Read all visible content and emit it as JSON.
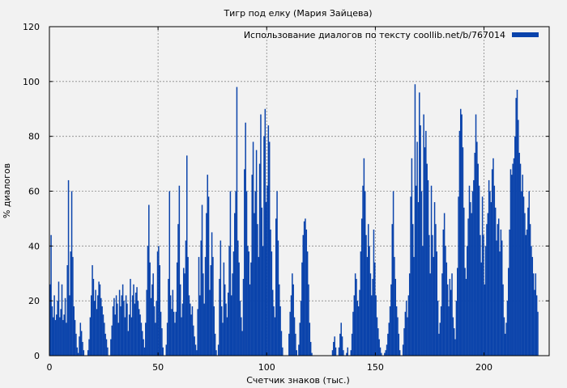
{
  "chart_data": {
    "type": "bar",
    "title": "Тигр под елку (Мария Зайцева)",
    "xlabel": "Счетчик знаков (тыс.)",
    "ylabel": "% диалогов",
    "xlim": [
      0,
      230
    ],
    "ylim": [
      0,
      120
    ],
    "xticks": [
      0,
      50,
      100,
      150,
      200
    ],
    "yticks": [
      0,
      20,
      40,
      60,
      80,
      100,
      120
    ],
    "grid": true,
    "legend_position": "top-right",
    "series": [
      {
        "name": "Использование диалогов по тексту coollib.net/b/767014",
        "color": "#0a43ab",
        "x_step": 0.5,
        "values": [
          26,
          44,
          18,
          14,
          22,
          13,
          15,
          20,
          27,
          14,
          17,
          26,
          13,
          15,
          21,
          12,
          33,
          64,
          22,
          38,
          60,
          36,
          18,
          13,
          8,
          3,
          1,
          7,
          12,
          9,
          5,
          2,
          0,
          0,
          0,
          2,
          6,
          14,
          22,
          33,
          28,
          20,
          24,
          17,
          22,
          27,
          26,
          21,
          18,
          15,
          12,
          8,
          6,
          3,
          0,
          0,
          6,
          11,
          18,
          21,
          15,
          22,
          19,
          12,
          24,
          18,
          22,
          26,
          20,
          14,
          22,
          19,
          9,
          15,
          28,
          14,
          22,
          26,
          19,
          23,
          25,
          20,
          17,
          15,
          12,
          9,
          6,
          3,
          12,
          24,
          40,
          55,
          34,
          21,
          26,
          30,
          18,
          12,
          20,
          38,
          40,
          33,
          16,
          10,
          3,
          0,
          0,
          4,
          12,
          28,
          60,
          22,
          17,
          24,
          16,
          12,
          16,
          34,
          48,
          62,
          26,
          14,
          19,
          32,
          30,
          42,
          73,
          36,
          22,
          19,
          15,
          18,
          11,
          7,
          4,
          2,
          17,
          36,
          22,
          42,
          55,
          30,
          19,
          36,
          52,
          66,
          58,
          24,
          33,
          45,
          36,
          18,
          8,
          2,
          0,
          4,
          28,
          42,
          18,
          12,
          34,
          26,
          19,
          14,
          23,
          40,
          60,
          22,
          30,
          38,
          52,
          60,
          98,
          42,
          34,
          20,
          14,
          9,
          28,
          68,
          85,
          60,
          40,
          38,
          26,
          34,
          66,
          78,
          52,
          60,
          75,
          48,
          36,
          70,
          88,
          54,
          40,
          80,
          90,
          56,
          62,
          84,
          78,
          46,
          38,
          24,
          18,
          14,
          50,
          60,
          42,
          26,
          18,
          9,
          3,
          0,
          0,
          0,
          0,
          0,
          8,
          16,
          22,
          30,
          26,
          14,
          8,
          2,
          0,
          4,
          12,
          20,
          34,
          44,
          49,
          50,
          46,
          38,
          26,
          12,
          5,
          1,
          0,
          0,
          0,
          0,
          0,
          0,
          0,
          0,
          0,
          0,
          0,
          0,
          0,
          0,
          0,
          0,
          0,
          0,
          2,
          5,
          7,
          3,
          0,
          0,
          3,
          8,
          12,
          7,
          2,
          0,
          0,
          1,
          3,
          0,
          0,
          2,
          8,
          16,
          22,
          30,
          28,
          20,
          18,
          24,
          38,
          50,
          62,
          72,
          60,
          44,
          36,
          48,
          40,
          30,
          22,
          28,
          46,
          34,
          22,
          14,
          10,
          6,
          3,
          1,
          0,
          0,
          1,
          2,
          4,
          8,
          12,
          18,
          26,
          48,
          60,
          36,
          28,
          18,
          14,
          8,
          2,
          0,
          0,
          4,
          10,
          16,
          20,
          14,
          22,
          30,
          58,
          72,
          48,
          36,
          99,
          62,
          78,
          56,
          96,
          84,
          60,
          40,
          88,
          76,
          82,
          70,
          64,
          44,
          30,
          62,
          44,
          36,
          56,
          48,
          38,
          20,
          8,
          12,
          18,
          30,
          46,
          52,
          40,
          34,
          26,
          18,
          28,
          24,
          30,
          14,
          10,
          6,
          20,
          32,
          58,
          82,
          90,
          88,
          76,
          54,
          32,
          28,
          40,
          50,
          62,
          56,
          52,
          60,
          64,
          74,
          88,
          78,
          70,
          62,
          44,
          34,
          58,
          44,
          26,
          40,
          48,
          52,
          64,
          60,
          56,
          68,
          72,
          62,
          54,
          42,
          48,
          50,
          38,
          46,
          42,
          26,
          14,
          8,
          12,
          20,
          32,
          46,
          68,
          66,
          70,
          72,
          80,
          94,
          97,
          86,
          74,
          70,
          60,
          66,
          58,
          52,
          44,
          46,
          54,
          60,
          48,
          40,
          36,
          30,
          24,
          30,
          22,
          16
        ]
      }
    ]
  }
}
